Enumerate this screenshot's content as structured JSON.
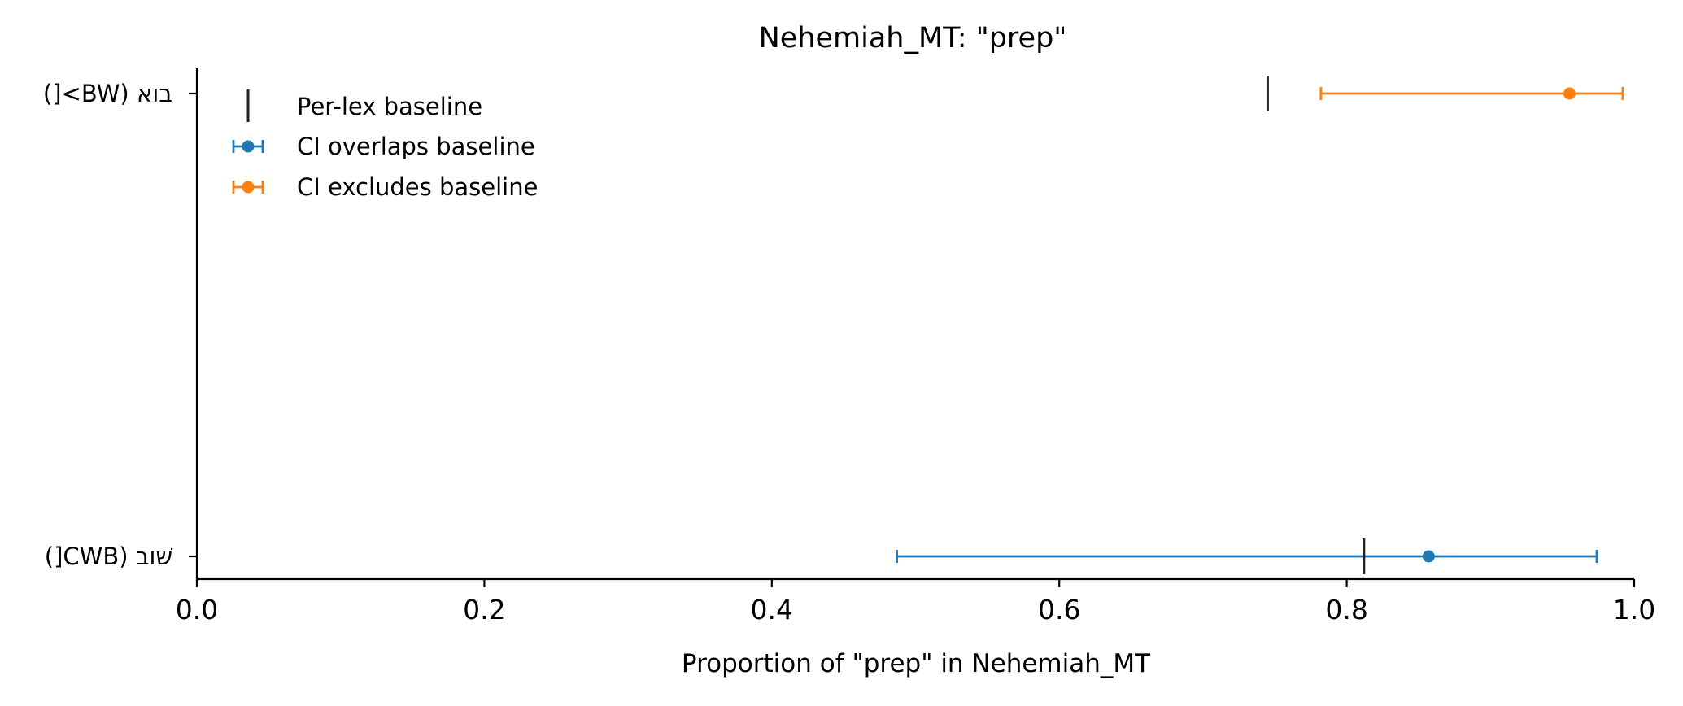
{
  "chart_data": {
    "type": "errorbar",
    "title": "Nehemiah_MT: \"prep\"",
    "xlabel": "Proportion of \"prep\" in Nehemiah_MT",
    "ylabel": "",
    "xlim": [
      0.0,
      1.0
    ],
    "xticks": [
      0.0,
      0.2,
      0.4,
      0.6,
      0.8,
      1.0
    ],
    "xtick_labels": [
      "0.0",
      "0.2",
      "0.4",
      "0.6",
      "0.8",
      "1.0"
    ],
    "categories": [
      "בוא (BW>[)",
      "שׁוב (CWB[)"
    ],
    "rows": [
      {
        "label": "בוא (BW>[)",
        "value": 0.955,
        "ci_low": 0.782,
        "ci_high": 0.992,
        "baseline": 0.745,
        "series": "CI excludes baseline"
      },
      {
        "label": "שׁוב (CWB[)",
        "value": 0.857,
        "ci_low": 0.487,
        "ci_high": 0.974,
        "baseline": 0.812,
        "series": "CI overlaps baseline"
      }
    ],
    "legend": {
      "position": "top-left",
      "entries": [
        {
          "name": "Per-lex baseline",
          "marker": "vline",
          "color": "#222222"
        },
        {
          "name": "CI overlaps baseline",
          "marker": "errorbar",
          "color": "#1f77b4"
        },
        {
          "name": "CI excludes baseline",
          "marker": "errorbar",
          "color": "#ff7f0e"
        }
      ]
    },
    "colors": {
      "CI overlaps baseline": "#1f77b4",
      "CI excludes baseline": "#ff7f0e",
      "baseline": "#222222"
    },
    "grid": false
  }
}
